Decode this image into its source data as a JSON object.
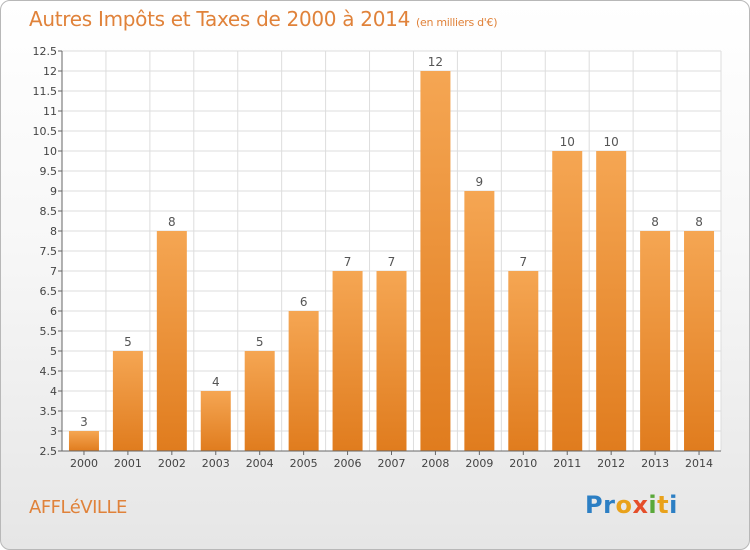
{
  "page": {
    "title": "Autres Impôts et Taxes de 2000 à 2014",
    "subtitle": "(en milliers d'€)",
    "commune": "AFFLéVILLE",
    "logo": "Proxiti"
  },
  "colors": {
    "bar_top": "#f5a653",
    "bar_bottom": "#e07c1e",
    "title": "#e0823a",
    "label": "#555555"
  },
  "chart_data": {
    "type": "bar",
    "title": "Autres Impôts et Taxes de 2000 à 2014",
    "subtitle": "(en milliers d'€)",
    "xlabel": "",
    "ylabel": "",
    "categories": [
      "2000",
      "2001",
      "2002",
      "2003",
      "2004",
      "2005",
      "2006",
      "2007",
      "2008",
      "2009",
      "2010",
      "2011",
      "2012",
      "2013",
      "2014"
    ],
    "values": [
      3,
      5,
      8,
      4,
      5,
      6,
      7,
      7,
      12,
      9,
      7,
      10,
      10,
      8,
      8
    ],
    "data_labels": [
      "3",
      "5",
      "8",
      "4",
      "5",
      "6",
      "7",
      "7",
      "12",
      "9",
      "7",
      "10",
      "10",
      "8",
      "8"
    ],
    "ylim": [
      2.5,
      12.5
    ],
    "yticks": [
      "2.5",
      "3",
      "3.5",
      "4",
      "4.5",
      "5",
      "5.5",
      "6",
      "6.5",
      "7",
      "7.5",
      "8",
      "8.5",
      "9",
      "9.5",
      "10",
      "10.5",
      "11",
      "11.5",
      "12",
      "12.5"
    ],
    "grid": true
  }
}
